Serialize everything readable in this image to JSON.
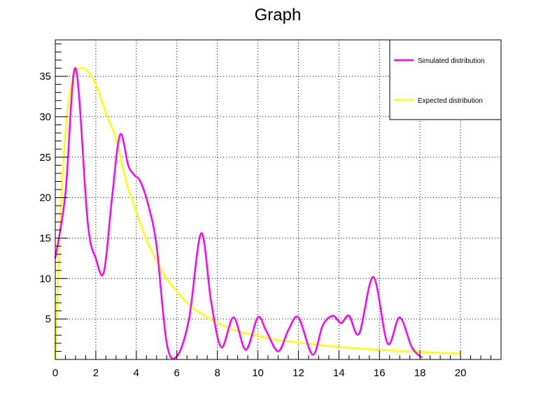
{
  "chart_data": {
    "type": "line",
    "title": "Graph",
    "xlabel": "",
    "ylabel": "",
    "xlim": [
      0,
      22
    ],
    "ylim": [
      0,
      39.5
    ],
    "x_ticks": [
      0,
      2,
      4,
      6,
      8,
      10,
      12,
      14,
      16,
      18,
      20
    ],
    "y_ticks": [
      5,
      10,
      15,
      20,
      25,
      30,
      35
    ],
    "grid": true,
    "legend_position": "top-right",
    "series": [
      {
        "name": "Simulated distribution",
        "color": "#ff00ff",
        "x": [
          0,
          0.5,
          1.0,
          1.6,
          2.0,
          2.4,
          2.8,
          3.2,
          3.6,
          3.9,
          4.2,
          4.6,
          5.0,
          5.5,
          6.0,
          6.6,
          7.2,
          7.7,
          8.2,
          8.8,
          9.4,
          10.0,
          10.4,
          11.0,
          11.5,
          12.0,
          12.7,
          13.2,
          13.7,
          14.1,
          14.5,
          15.0,
          15.7,
          16.4,
          17.0,
          17.6,
          18.1
        ],
        "y": [
          12.5,
          20.5,
          36.0,
          17.0,
          12.5,
          10.8,
          20.0,
          27.8,
          24.0,
          22.8,
          22.0,
          19.0,
          14.0,
          2.0,
          0.4,
          5.0,
          15.6,
          7.0,
          1.5,
          5.2,
          1.2,
          5.2,
          3.6,
          1.0,
          3.6,
          5.2,
          0.6,
          4.2,
          5.4,
          4.5,
          5.4,
          3.2,
          10.2,
          2.0,
          5.2,
          1.5,
          0.2
        ]
      },
      {
        "name": "Expected distribution",
        "color": "#ffff00",
        "x": [
          0,
          0.2,
          0.4,
          0.6,
          0.8,
          1.0,
          1.2,
          1.4,
          1.6,
          1.8,
          2.0,
          2.5,
          3.0,
          3.5,
          4.0,
          4.5,
          5.0,
          5.5,
          6.0,
          6.5,
          7.0,
          7.5,
          8.0,
          9.0,
          10.0,
          11.0,
          12.0,
          13.0,
          14.0,
          15.0,
          16.0,
          17.0,
          18.0,
          19.0,
          20.0
        ],
        "y": [
          0.0,
          14.5,
          24.5,
          30.5,
          34.0,
          35.6,
          36.0,
          36.0,
          35.6,
          34.9,
          34.0,
          30.5,
          27.2,
          22.0,
          18.2,
          14.8,
          12.2,
          10.0,
          8.4,
          7.0,
          6.0,
          5.2,
          4.5,
          3.5,
          2.9,
          2.4,
          2.1,
          1.8,
          1.55,
          1.35,
          1.2,
          1.05,
          0.93,
          0.83,
          0.75
        ]
      }
    ]
  }
}
